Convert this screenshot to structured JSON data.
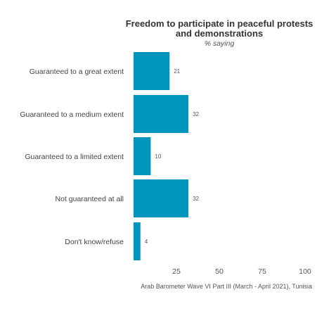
{
  "chart_data": {
    "type": "bar",
    "orientation": "horizontal",
    "title": "Freedom to participate in peaceful protests and demonstrations",
    "title_lines": [
      "Freedom to participate in peaceful protests",
      "and demonstrations"
    ],
    "subtitle": "% saying",
    "categories": [
      "Guaranteed to a great extent",
      "Guaranteed to a medium extent",
      "Guaranteed to a limited extent",
      "Not guaranteed at all",
      "Don't know/refuse"
    ],
    "values": [
      21,
      32,
      10,
      32,
      4
    ],
    "xlim": [
      0,
      100
    ],
    "xticks": [
      25,
      50,
      75,
      100
    ],
    "grid": false,
    "bar_color": "#0095BD",
    "caption": "Arab Barometer Wave VI Part III (March - April 2021), Tunisia"
  }
}
